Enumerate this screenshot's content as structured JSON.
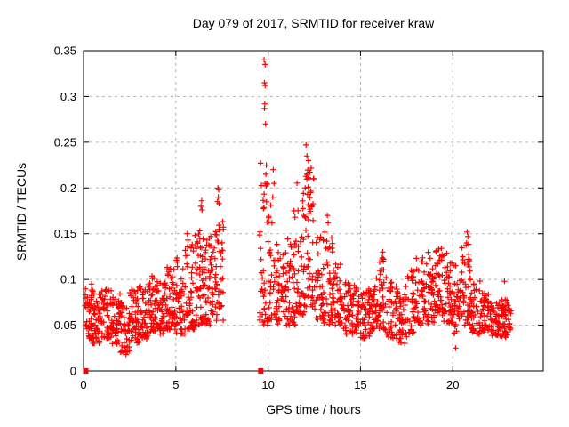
{
  "chart_data": {
    "type": "scatter",
    "title": "Day 079 of 2017, SRMTID for receiver kraw",
    "xlabel": "GPS time / hours",
    "ylabel": "SRMTID / TECUs",
    "xlim": [
      0,
      24.9
    ],
    "ylim": [
      0,
      0.35
    ],
    "xticks": [
      0,
      5,
      10,
      15,
      20
    ],
    "xtick_labels": [
      "0",
      "5",
      "10",
      "15",
      "20"
    ],
    "yticks": [
      0,
      0.05,
      0.1,
      0.15,
      0.2,
      0.25,
      0.3,
      0.35
    ],
    "ytick_labels": [
      "0",
      "0.05",
      "0.1",
      "0.15",
      "0.2",
      "0.25",
      "0.3",
      "0.35"
    ],
    "grid": true,
    "grid_color": "#b0b0b0",
    "axis_color": "#000000",
    "background": "#ffffff",
    "legend": "none",
    "series": [
      {
        "name": "srmtid-points",
        "marker": "plus",
        "color": "#ff0000",
        "seed": 20170379,
        "bins_format": [
          "x_start",
          "x_end",
          "count",
          "y_min",
          "y_max",
          "skew_exponent"
        ],
        "bins": [
          [
            0.05,
            0.5,
            48,
            0.035,
            0.1,
            1.2
          ],
          [
            0.5,
            1.0,
            46,
            0.03,
            0.095,
            1.2
          ],
          [
            1.0,
            1.5,
            46,
            0.035,
            0.09,
            1.2
          ],
          [
            1.5,
            2.0,
            46,
            0.028,
            0.085,
            1.2
          ],
          [
            2.0,
            2.5,
            46,
            0.02,
            0.075,
            1.2
          ],
          [
            2.5,
            3.0,
            46,
            0.03,
            0.09,
            1.2
          ],
          [
            3.0,
            3.5,
            46,
            0.035,
            0.095,
            1.2
          ],
          [
            3.5,
            4.0,
            46,
            0.04,
            0.105,
            1.2
          ],
          [
            4.0,
            4.5,
            46,
            0.04,
            0.1,
            1.2
          ],
          [
            4.5,
            5.0,
            46,
            0.045,
            0.115,
            1.3
          ],
          [
            5.0,
            5.5,
            46,
            0.04,
            0.125,
            1.4
          ],
          [
            5.5,
            6.0,
            46,
            0.045,
            0.14,
            1.5
          ],
          [
            6.0,
            6.5,
            48,
            0.05,
            0.155,
            1.5
          ],
          [
            6.5,
            7.0,
            50,
            0.05,
            0.15,
            1.4
          ],
          [
            7.0,
            7.6,
            52,
            0.055,
            0.165,
            1.4
          ],
          [
            9.5,
            10.0,
            40,
            0.05,
            0.25,
            1.9
          ],
          [
            10.0,
            10.5,
            42,
            0.055,
            0.2,
            1.8
          ],
          [
            10.5,
            11.0,
            40,
            0.05,
            0.13,
            1.4
          ],
          [
            11.0,
            11.5,
            40,
            0.05,
            0.15,
            1.5
          ],
          [
            11.5,
            12.0,
            46,
            0.06,
            0.215,
            1.6
          ],
          [
            12.0,
            12.5,
            46,
            0.07,
            0.23,
            1.5
          ],
          [
            12.5,
            13.0,
            42,
            0.055,
            0.15,
            1.4
          ],
          [
            13.0,
            13.5,
            42,
            0.05,
            0.155,
            1.5
          ],
          [
            13.5,
            14.0,
            40,
            0.05,
            0.12,
            1.3
          ],
          [
            14.0,
            14.5,
            40,
            0.04,
            0.1,
            1.2
          ],
          [
            14.5,
            15.0,
            40,
            0.04,
            0.095,
            1.2
          ],
          [
            15.0,
            15.5,
            40,
            0.035,
            0.09,
            1.2
          ],
          [
            15.5,
            16.0,
            40,
            0.04,
            0.105,
            1.2
          ],
          [
            16.0,
            16.5,
            40,
            0.04,
            0.125,
            1.3
          ],
          [
            16.5,
            17.0,
            40,
            0.035,
            0.1,
            1.2
          ],
          [
            17.0,
            17.5,
            40,
            0.03,
            0.095,
            1.2
          ],
          [
            17.5,
            18.0,
            40,
            0.04,
            0.11,
            1.2
          ],
          [
            18.0,
            18.5,
            40,
            0.05,
            0.125,
            1.3
          ],
          [
            18.5,
            19.0,
            42,
            0.05,
            0.13,
            1.3
          ],
          [
            19.0,
            19.5,
            46,
            0.06,
            0.135,
            1.2
          ],
          [
            19.5,
            20.0,
            46,
            0.05,
            0.13,
            1.2
          ],
          [
            20.0,
            20.5,
            42,
            0.04,
            0.12,
            1.3
          ],
          [
            20.5,
            21.0,
            44,
            0.05,
            0.155,
            1.6
          ],
          [
            21.0,
            21.5,
            40,
            0.04,
            0.1,
            1.3
          ],
          [
            21.5,
            22.0,
            40,
            0.04,
            0.085,
            1.2
          ],
          [
            22.0,
            22.5,
            42,
            0.038,
            0.08,
            1.2
          ],
          [
            22.5,
            23.0,
            46,
            0.035,
            0.078,
            1.2
          ],
          [
            23.0,
            23.15,
            14,
            0.045,
            0.07,
            1.2
          ]
        ],
        "notable_points": [
          [
            9.78,
            0.34
          ],
          [
            9.84,
            0.335
          ],
          [
            9.8,
            0.315
          ],
          [
            9.84,
            0.312
          ],
          [
            9.82,
            0.292
          ],
          [
            9.8,
            0.287
          ],
          [
            9.86,
            0.27
          ],
          [
            9.9,
            0.225
          ],
          [
            9.88,
            0.215
          ],
          [
            9.92,
            0.205
          ],
          [
            12.05,
            0.247
          ],
          [
            12.1,
            0.235
          ],
          [
            12.18,
            0.23
          ],
          [
            12.1,
            0.215
          ],
          [
            12.22,
            0.21
          ],
          [
            12.0,
            0.2
          ],
          [
            12.3,
            0.195
          ],
          [
            7.28,
            0.2
          ],
          [
            7.32,
            0.198
          ],
          [
            7.3,
            0.19
          ],
          [
            7.26,
            0.185
          ],
          [
            7.34,
            0.183
          ],
          [
            6.4,
            0.186
          ],
          [
            6.36,
            0.18
          ],
          [
            6.42,
            0.176
          ],
          [
            5.62,
            0.15
          ],
          [
            5.66,
            0.143
          ],
          [
            10.28,
            0.22
          ],
          [
            10.32,
            0.205
          ],
          [
            10.25,
            0.19
          ],
          [
            11.4,
            0.175
          ],
          [
            11.45,
            0.168
          ],
          [
            13.2,
            0.17
          ],
          [
            13.25,
            0.162
          ],
          [
            16.2,
            0.13
          ],
          [
            16.25,
            0.122
          ],
          [
            20.78,
            0.152
          ],
          [
            20.82,
            0.147
          ],
          [
            20.75,
            0.14
          ],
          [
            22.8,
            0.098
          ],
          [
            20.15,
            0.025
          ],
          [
            2.3,
            0.018
          ]
        ]
      },
      {
        "name": "zero-flag-squares",
        "marker": "filled-square",
        "color": "#ff0000",
        "points": [
          [
            0.12,
            0
          ],
          [
            9.6,
            0
          ]
        ]
      }
    ]
  }
}
